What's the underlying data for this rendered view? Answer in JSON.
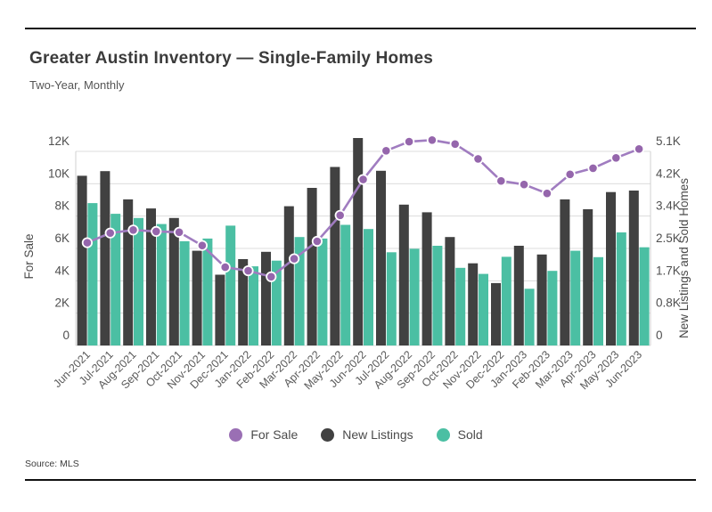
{
  "page": {
    "title": "Greater Austin Inventory — Single-Family Homes",
    "subtitle": "Two-Year, Monthly",
    "source": "Source: MLS"
  },
  "legend": [
    {
      "label": "For Sale",
      "color": "#9a6fb4"
    },
    {
      "label": "New Listings",
      "color": "#414141"
    },
    {
      "label": "Sold",
      "color": "#4bbfa3"
    }
  ],
  "chart_data": {
    "type": "combo",
    "title": "Greater Austin Inventory — Single-Family Homes",
    "subtitle": "Two-Year, Monthly",
    "grid": true,
    "legend_position": "bottom",
    "categories": [
      "Jun-2021",
      "Jul-2021",
      "Aug-2021",
      "Sep-2021",
      "Oct-2021",
      "Nov-2021",
      "Dec-2021",
      "Jan-2022",
      "Feb-2022",
      "Mar-2022",
      "Apr-2022",
      "May-2022",
      "Jun-2022",
      "Jul-2022",
      "Aug-2022",
      "Sep-2022",
      "Oct-2022",
      "Nov-2022",
      "Dec-2022",
      "Jan-2023",
      "Feb-2023",
      "Mar-2023",
      "Apr-2023",
      "May-2023",
      "Jun-2023"
    ],
    "left_axis": {
      "label": "For Sale",
      "ylim": [
        0,
        12000
      ],
      "tick_values": [
        0,
        2000,
        4000,
        6000,
        8000,
        10000,
        12000
      ],
      "tick_labels": [
        "0",
        "2K",
        "4K",
        "6K",
        "8K",
        "10K",
        "12K"
      ]
    },
    "right_axis": {
      "label": "New Listings and Sold Homes",
      "ylim": [
        0,
        5100
      ],
      "tick_labels": [
        "0",
        "0.8K",
        "1.7K",
        "2.5K",
        "3.4K",
        "4.2K",
        "5.1K"
      ]
    },
    "series": [
      {
        "name": "For Sale",
        "type": "line",
        "axis": "left",
        "color": "#a07cc0",
        "point_color": "#9566ac",
        "values": [
          6350,
          6950,
          7140,
          7050,
          7000,
          6180,
          4840,
          4620,
          4250,
          5360,
          6440,
          8050,
          10260,
          12040,
          12600,
          12700,
          12450,
          11540,
          10170,
          9950,
          9400,
          10580,
          10960,
          11600,
          12150
        ]
      },
      {
        "name": "New Listings",
        "type": "bar",
        "axis": "right",
        "color": "#414141",
        "values": [
          4460,
          4580,
          3840,
          3600,
          3350,
          2490,
          1860,
          2270,
          2460,
          3660,
          4140,
          4690,
          5450,
          4590,
          3700,
          3500,
          2850,
          2160,
          1640,
          2620,
          2390,
          3840,
          3580,
          4030,
          4070
        ]
      },
      {
        "name": "Sold",
        "type": "bar",
        "axis": "right",
        "color": "#4bbfa3",
        "values": [
          3740,
          3460,
          3350,
          3190,
          2740,
          2810,
          3150,
          2080,
          2230,
          2850,
          2810,
          3170,
          3060,
          2450,
          2540,
          2620,
          2040,
          1880,
          2330,
          1490,
          1960,
          2490,
          2320,
          2970,
          2580
        ]
      }
    ]
  }
}
